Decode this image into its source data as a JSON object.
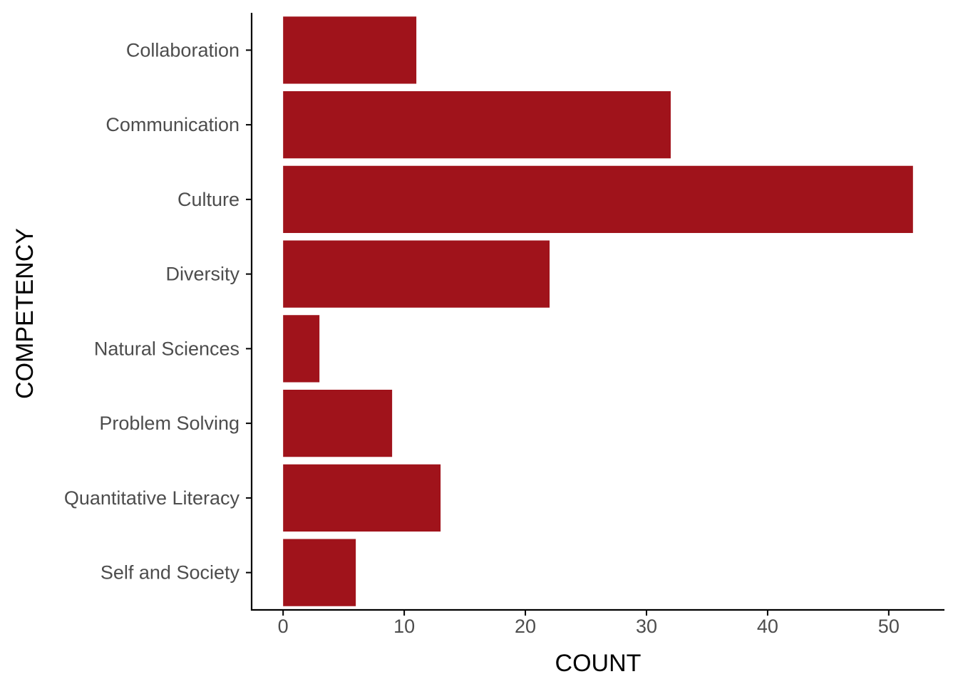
{
  "chart_data": {
    "type": "bar",
    "orientation": "horizontal",
    "categories": [
      "Collaboration",
      "Communication",
      "Culture",
      "Diversity",
      "Natural Sciences",
      "Problem Solving",
      "Quantitative Literacy",
      "Self and Society"
    ],
    "values": [
      11,
      32,
      52,
      22,
      3,
      9,
      13,
      6
    ],
    "xlabel": "COUNT",
    "ylabel": "COMPETENCY",
    "xlim": [
      -2.6,
      54.6
    ],
    "xticks": [
      0,
      10,
      20,
      30,
      40,
      50
    ],
    "grid": false,
    "legend": "none",
    "bar_color": "#a0131b"
  }
}
